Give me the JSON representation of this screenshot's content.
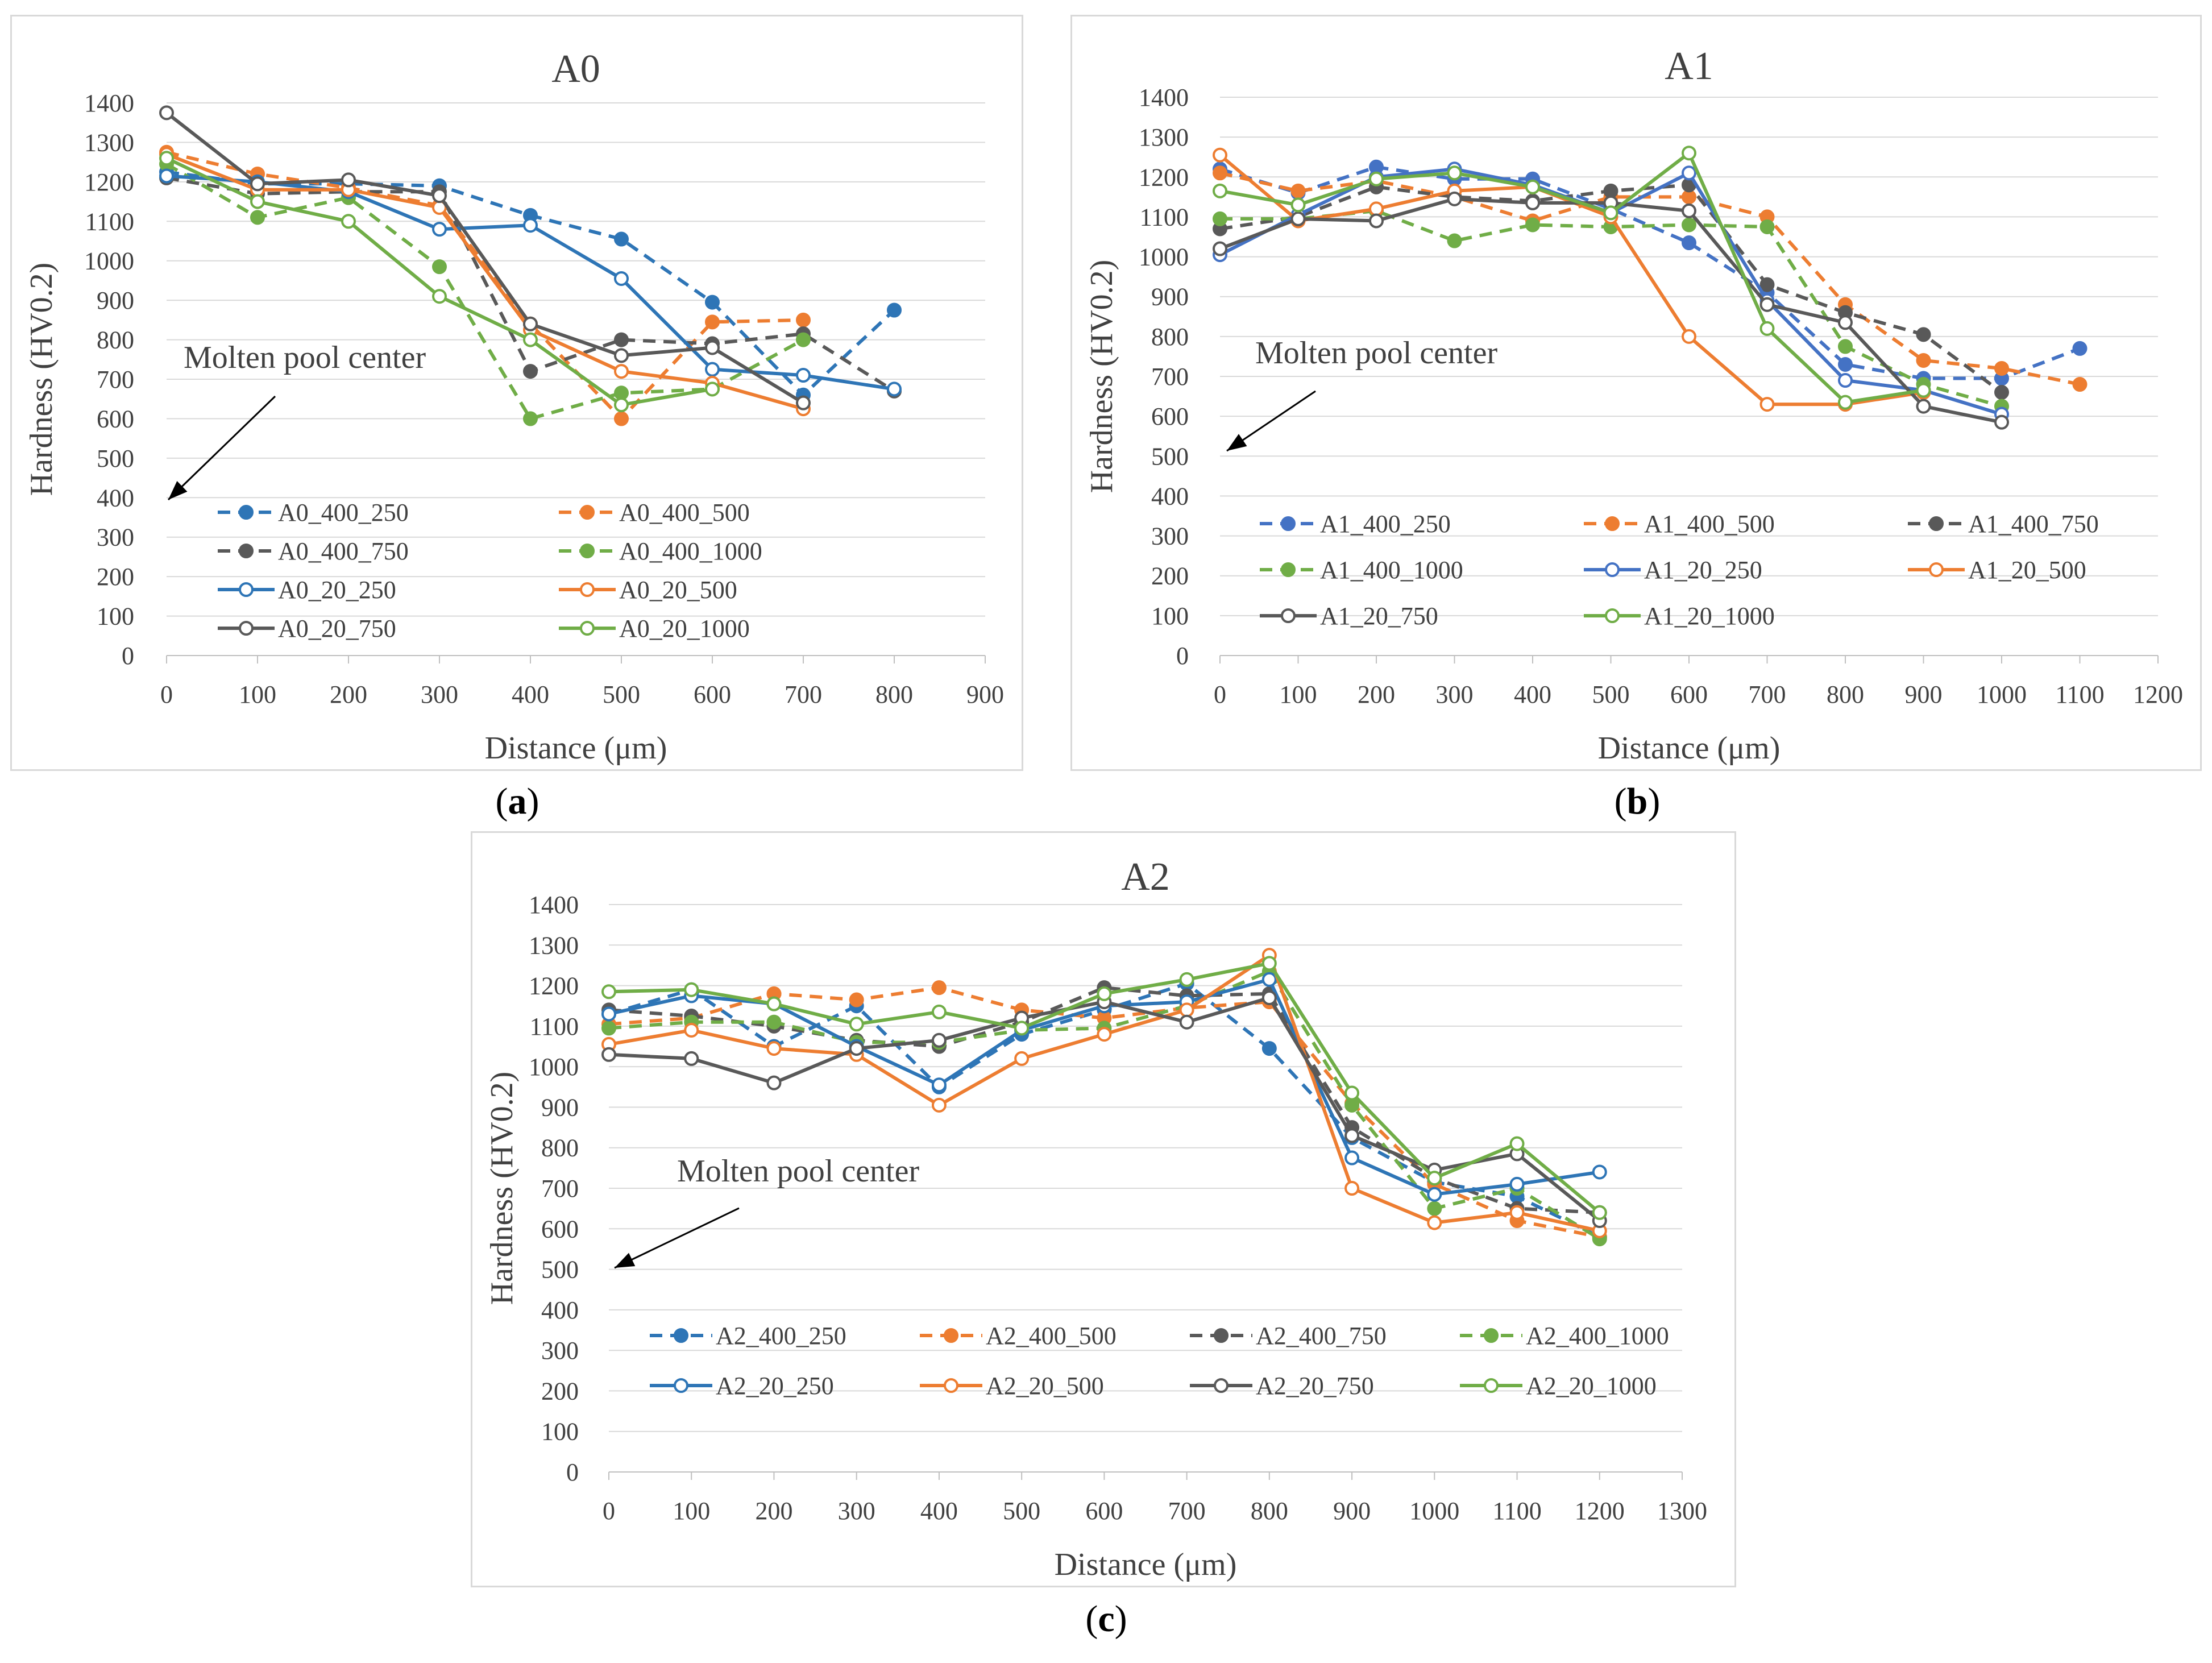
{
  "captions": [
    "a",
    "b",
    "c"
  ],
  "chart_data": [
    {
      "type": "line",
      "title": "A0",
      "xlabel": "Distance  (μm)",
      "ylabel": "Hardness  (HV0.2)",
      "xlim": [
        0,
        900
      ],
      "ylim": [
        0,
        1400
      ],
      "xticks": [
        "0",
        "100",
        "200",
        "300",
        "400",
        "500",
        "600",
        "700",
        "800",
        "900"
      ],
      "yticks": [
        "0",
        "100",
        "200",
        "300",
        "400",
        "500",
        "600",
        "700",
        "800",
        "900",
        "1000",
        "1100",
        "1200",
        "1300",
        "1400"
      ],
      "grid": "horizontal",
      "legend": "lower-left, 2 columns",
      "annotation": "Molten pool center",
      "series": [
        {
          "name": "A0_400_250",
          "color": "#2e75b6",
          "style": "dashed",
          "marker": "filled",
          "x": [
            0,
            100,
            200,
            300,
            400,
            500,
            600,
            700,
            800
          ],
          "y": [
            1225,
            1195,
            1195,
            1190,
            1115,
            1055,
            895,
            660,
            875
          ]
        },
        {
          "name": "A0_400_500",
          "color": "#ed7d31",
          "style": "dashed",
          "marker": "filled",
          "x": [
            0,
            100,
            200,
            300,
            400,
            500,
            600,
            700
          ],
          "y": [
            1275,
            1220,
            1185,
            1140,
            840,
            600,
            845,
            850
          ]
        },
        {
          "name": "A0_400_750",
          "color": "#595959",
          "style": "dashed",
          "marker": "filled",
          "x": [
            0,
            100,
            200,
            300,
            400,
            500,
            600,
            700,
            800
          ],
          "y": [
            1210,
            1170,
            1175,
            1175,
            720,
            800,
            790,
            815,
            670
          ]
        },
        {
          "name": "A0_400_1000",
          "color": "#70ad47",
          "style": "dashed",
          "marker": "filled",
          "x": [
            0,
            100,
            200,
            300,
            400,
            500,
            600,
            700
          ],
          "y": [
            1245,
            1110,
            1160,
            985,
            600,
            665,
            675,
            800
          ]
        },
        {
          "name": "A0_20_250",
          "color": "#2e75b6",
          "style": "solid",
          "marker": "open",
          "x": [
            0,
            100,
            200,
            300,
            400,
            500,
            600,
            700,
            800
          ],
          "y": [
            1215,
            1200,
            1175,
            1080,
            1090,
            955,
            725,
            710,
            675
          ]
        },
        {
          "name": "A0_20_500",
          "color": "#ed7d31",
          "style": "solid",
          "marker": "open",
          "x": [
            0,
            100,
            200,
            300,
            400,
            500,
            600,
            700
          ],
          "y": [
            1270,
            1180,
            1180,
            1135,
            825,
            720,
            690,
            625
          ]
        },
        {
          "name": "A0_20_750",
          "color": "#595959",
          "style": "solid",
          "marker": "open",
          "x": [
            0,
            100,
            200,
            300,
            400,
            500,
            600,
            700
          ],
          "y": [
            1375,
            1195,
            1205,
            1165,
            840,
            760,
            780,
            640
          ]
        },
        {
          "name": "A0_20_1000",
          "color": "#70ad47",
          "style": "solid",
          "marker": "open",
          "x": [
            0,
            100,
            200,
            300,
            400,
            500,
            600
          ],
          "y": [
            1260,
            1150,
            1100,
            910,
            800,
            635,
            675
          ]
        }
      ]
    },
    {
      "type": "line",
      "title": "A1",
      "xlabel": "Distance  (μm)",
      "ylabel": "Hardness  (HV0.2)",
      "xlim": [
        0,
        1200
      ],
      "ylim": [
        0,
        1400
      ],
      "xticks": [
        "0",
        "100",
        "200",
        "300",
        "400",
        "500",
        "600",
        "700",
        "800",
        "900",
        "1000",
        "1100",
        "1200"
      ],
      "yticks": [
        "0",
        "100",
        "200",
        "300",
        "400",
        "500",
        "600",
        "700",
        "800",
        "900",
        "1000",
        "1100",
        "1200",
        "1300",
        "1400"
      ],
      "grid": "horizontal",
      "legend": "lower, 3 columns",
      "annotation": "Molten pool center",
      "series": [
        {
          "name": "A1_400_250",
          "color": "#4472c4",
          "style": "dashed",
          "marker": "filled",
          "x": [
            0,
            100,
            200,
            300,
            400,
            500,
            600,
            700,
            800,
            900,
            1000,
            1100
          ],
          "y": [
            1220,
            1160,
            1225,
            1195,
            1195,
            1120,
            1035,
            910,
            730,
            695,
            695,
            770
          ]
        },
        {
          "name": "A1_400_500",
          "color": "#ed7d31",
          "style": "dashed",
          "marker": "filled",
          "x": [
            0,
            100,
            200,
            300,
            400,
            500,
            600,
            700,
            800,
            900,
            1000,
            1100
          ],
          "y": [
            1210,
            1165,
            1190,
            1150,
            1090,
            1150,
            1150,
            1100,
            880,
            740,
            720,
            680
          ]
        },
        {
          "name": "A1_400_750",
          "color": "#595959",
          "style": "dashed",
          "marker": "filled",
          "x": [
            0,
            100,
            200,
            300,
            400,
            500,
            600,
            700,
            800,
            900,
            1000
          ],
          "y": [
            1070,
            1100,
            1175,
            1150,
            1140,
            1165,
            1180,
            930,
            860,
            805,
            660
          ]
        },
        {
          "name": "A1_400_1000",
          "color": "#70ad47",
          "style": "dashed",
          "marker": "filled",
          "x": [
            0,
            100,
            200,
            300,
            400,
            500,
            600,
            700,
            800,
            900,
            1000
          ],
          "y": [
            1095,
            1095,
            1115,
            1040,
            1080,
            1075,
            1080,
            1075,
            775,
            680,
            625
          ]
        },
        {
          "name": "A1_20_250",
          "color": "#4472c4",
          "style": "solid",
          "marker": "open",
          "x": [
            0,
            100,
            200,
            300,
            400,
            500,
            600,
            700,
            800,
            900,
            1000
          ],
          "y": [
            1005,
            1105,
            1200,
            1220,
            1180,
            1110,
            1210,
            890,
            690,
            665,
            605
          ]
        },
        {
          "name": "A1_20_500",
          "color": "#ed7d31",
          "style": "solid",
          "marker": "open",
          "x": [
            0,
            100,
            200,
            300,
            400,
            500,
            600,
            700,
            800,
            900
          ],
          "y": [
            1255,
            1090,
            1120,
            1165,
            1175,
            1100,
            800,
            630,
            630,
            660
          ]
        },
        {
          "name": "A1_20_750",
          "color": "#595959",
          "style": "solid",
          "marker": "open",
          "x": [
            0,
            100,
            200,
            300,
            400,
            500,
            600,
            700,
            800,
            900,
            1000
          ],
          "y": [
            1020,
            1095,
            1090,
            1145,
            1135,
            1135,
            1115,
            880,
            835,
            625,
            585
          ]
        },
        {
          "name": "A1_20_1000",
          "color": "#70ad47",
          "style": "solid",
          "marker": "open",
          "x": [
            0,
            100,
            200,
            300,
            400,
            500,
            600,
            700,
            800,
            900
          ],
          "y": [
            1165,
            1130,
            1195,
            1210,
            1175,
            1110,
            1260,
            820,
            635,
            665
          ]
        }
      ]
    },
    {
      "type": "line",
      "title": "A2",
      "xlabel": "Distance  (μm)",
      "ylabel": "Hardness  (HV0.2)",
      "xlim": [
        0,
        1300
      ],
      "ylim": [
        0,
        1400
      ],
      "xticks": [
        "0",
        "100",
        "200",
        "300",
        "400",
        "500",
        "600",
        "700",
        "800",
        "900",
        "1000",
        "1100",
        "1200",
        "1300"
      ],
      "yticks": [
        "0",
        "100",
        "200",
        "300",
        "400",
        "500",
        "600",
        "700",
        "800",
        "900",
        "1000",
        "1100",
        "1200",
        "1300",
        "1400"
      ],
      "grid": "horizontal",
      "legend": "lower, 4 columns",
      "annotation": "Molten pool center",
      "series": [
        {
          "name": "A2_400_250",
          "color": "#2e75b6",
          "style": "dashed",
          "marker": "filled",
          "x": [
            0,
            100,
            200,
            300,
            400,
            500,
            600,
            700,
            800,
            900,
            1000,
            1100,
            1200
          ],
          "y": [
            1130,
            1190,
            1050,
            1150,
            950,
            1080,
            1140,
            1205,
            1045,
            825,
            715,
            680,
            580
          ]
        },
        {
          "name": "A2_400_500",
          "color": "#ed7d31",
          "style": "dashed",
          "marker": "filled",
          "x": [
            0,
            100,
            200,
            300,
            400,
            500,
            600,
            700,
            800,
            900,
            1000,
            1100,
            1200
          ],
          "y": [
            1105,
            1120,
            1180,
            1165,
            1195,
            1140,
            1120,
            1145,
            1160,
            910,
            710,
            620,
            580
          ]
        },
        {
          "name": "A2_400_750",
          "color": "#595959",
          "style": "dashed",
          "marker": "filled",
          "x": [
            0,
            100,
            200,
            300,
            400,
            500,
            600,
            700,
            800,
            900,
            1000,
            1100,
            1200
          ],
          "y": [
            1140,
            1125,
            1100,
            1065,
            1050,
            1110,
            1195,
            1175,
            1180,
            850,
            725,
            650,
            640
          ]
        },
        {
          "name": "A2_400_1000",
          "color": "#70ad47",
          "style": "dashed",
          "marker": "filled",
          "x": [
            0,
            100,
            200,
            300,
            400,
            500,
            600,
            700,
            800,
            900,
            1000,
            1100,
            1200
          ],
          "y": [
            1095,
            1110,
            1110,
            1060,
            1060,
            1090,
            1095,
            1150,
            1235,
            905,
            650,
            700,
            575
          ]
        },
        {
          "name": "A2_20_250",
          "color": "#2e75b6",
          "style": "solid",
          "marker": "open",
          "x": [
            0,
            100,
            200,
            300,
            400,
            500,
            600,
            700,
            800,
            900,
            1000,
            1100,
            1200
          ],
          "y": [
            1130,
            1175,
            1155,
            1050,
            955,
            1090,
            1150,
            1160,
            1215,
            775,
            685,
            710,
            740
          ]
        },
        {
          "name": "A2_20_500",
          "color": "#ed7d31",
          "style": "solid",
          "marker": "open",
          "x": [
            0,
            100,
            200,
            300,
            400,
            500,
            600,
            700,
            800,
            900,
            1000,
            1100,
            1200
          ],
          "y": [
            1055,
            1090,
            1045,
            1030,
            905,
            1020,
            1080,
            1140,
            1275,
            700,
            615,
            640,
            595
          ]
        },
        {
          "name": "A2_20_750",
          "color": "#595959",
          "style": "solid",
          "marker": "open",
          "x": [
            0,
            100,
            200,
            300,
            400,
            500,
            600,
            700,
            800,
            900,
            1000,
            1100,
            1200
          ],
          "y": [
            1030,
            1020,
            960,
            1045,
            1065,
            1120,
            1160,
            1110,
            1170,
            830,
            745,
            785,
            620
          ]
        },
        {
          "name": "A2_20_1000",
          "color": "#70ad47",
          "style": "solid",
          "marker": "open",
          "x": [
            0,
            100,
            200,
            300,
            400,
            500,
            600,
            700,
            800,
            900,
            1000,
            1100,
            1200
          ],
          "y": [
            1185,
            1190,
            1155,
            1105,
            1135,
            1095,
            1180,
            1215,
            1255,
            935,
            725,
            810,
            640
          ]
        }
      ]
    }
  ]
}
